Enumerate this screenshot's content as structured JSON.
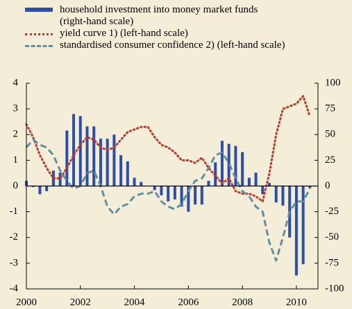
{
  "chart_data": {
    "type": "bar_line",
    "x": [
      2000,
      2000.25,
      2000.5,
      2000.75,
      2001,
      2001.25,
      2001.5,
      2001.75,
      2002,
      2002.25,
      2002.5,
      2002.75,
      2003,
      2003.25,
      2003.5,
      2003.75,
      2004,
      2004.25,
      2004.5,
      2004.75,
      2005,
      2005.25,
      2005.5,
      2005.75,
      2006,
      2006.25,
      2006.5,
      2006.75,
      2007,
      2007.25,
      2007.5,
      2007.75,
      2008,
      2008.25,
      2008.5,
      2008.75,
      2009,
      2009.25,
      2009.5,
      2009.75,
      2010,
      2010.25,
      2010.5
    ],
    "series": [
      {
        "name": "household investment into money market funds (right-hand scale)",
        "type": "bar",
        "axis": "y2",
        "color": "#2b4eae",
        "values": [
          5,
          -1,
          -8,
          -5,
          15,
          13,
          54,
          70,
          68,
          58,
          58,
          46,
          46,
          50,
          30,
          24,
          8,
          4,
          0,
          -4,
          -9,
          -15,
          -13,
          -20,
          -25,
          -18,
          -18,
          5,
          23,
          44,
          41,
          39,
          33,
          8,
          13,
          -8,
          3,
          -16,
          -19,
          -50,
          -87,
          -76,
          -2
        ]
      },
      {
        "name": "yield curve 1) (left-hand scale)",
        "type": "line",
        "style": "dotted",
        "color": "#c0392b",
        "values": [
          2.4,
          1.9,
          1.2,
          0.7,
          0.3,
          0.3,
          0.7,
          1.2,
          1.6,
          1.9,
          1.8,
          1.5,
          1.4,
          1.5,
          1.8,
          2.1,
          2.2,
          2.3,
          2.3,
          1.9,
          1.6,
          1.5,
          1.3,
          1.0,
          1.0,
          0.9,
          1.1,
          0.7,
          0.4,
          0.1,
          0.3,
          -0.2,
          -0.3,
          -0.3,
          -0.4,
          -0.6,
          0.5,
          2.0,
          3.0,
          3.1,
          3.2,
          3.5,
          2.7
        ]
      },
      {
        "name": "standardised consumer confidence 2) (left-hand scale)",
        "type": "line",
        "style": "dashed",
        "color": "#5f8fa0",
        "values": [
          1.5,
          1.8,
          1.6,
          1.5,
          1.2,
          0.6,
          0.2,
          -0.1,
          0,
          0.5,
          0.6,
          0,
          -0.8,
          -1.1,
          -0.8,
          -0.7,
          -0.4,
          -0.3,
          -0.3,
          -0.2,
          -0.6,
          -0.8,
          -0.9,
          -0.7,
          -0.2,
          0.2,
          0.3,
          0.7,
          1.2,
          1.3,
          0.9,
          0.3,
          -0.2,
          -0.4,
          -0.8,
          -1.0,
          -2.2,
          -2.9,
          -2.0,
          -1.0,
          -0.6,
          -0.6,
          -0.1
        ]
      }
    ],
    "xlim": [
      2000,
      2010.8
    ],
    "xticks": [
      2000,
      2002,
      2004,
      2006,
      2008,
      2010
    ],
    "ylim": [
      -4,
      4
    ],
    "yticks": [
      -4,
      -3,
      -2,
      -1,
      0,
      1,
      2,
      3,
      4
    ],
    "y2lim": [
      -100,
      100
    ],
    "y2ticks": [
      -100,
      -75,
      -50,
      -25,
      0,
      25,
      50,
      75,
      100
    ]
  }
}
